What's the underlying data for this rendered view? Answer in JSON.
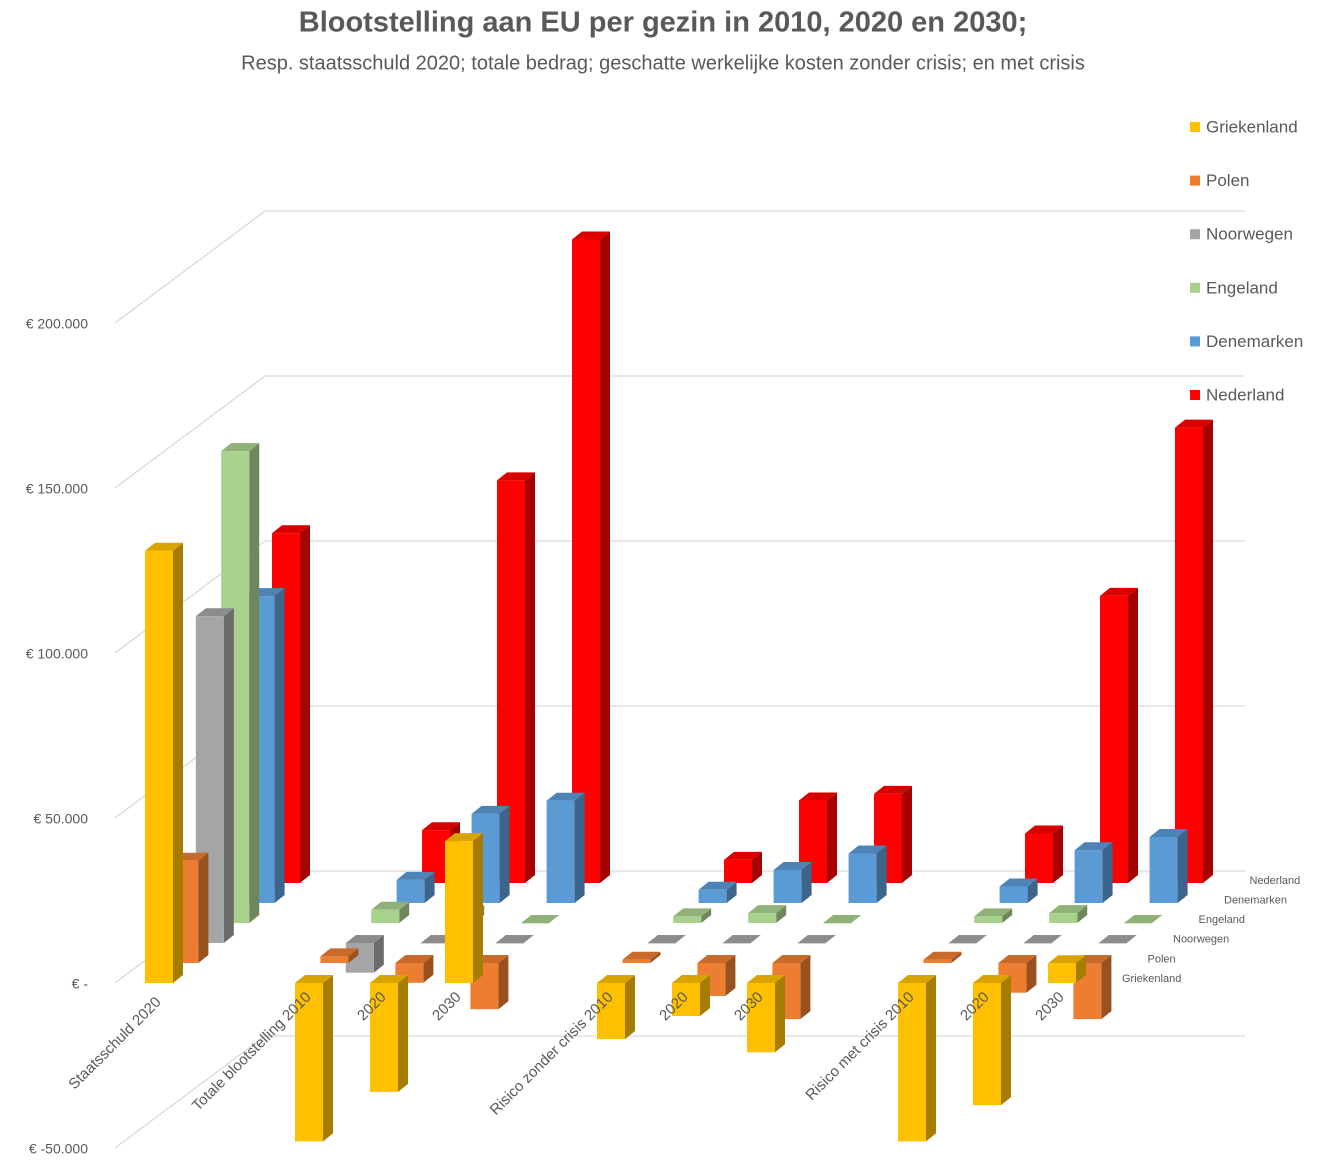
{
  "chart_data": {
    "type": "bar3d",
    "title": "Blootstelling aan EU per gezin in 2010, 2020 en 2030;",
    "subtitle": "Resp. staatsschuld 2020; totale bedrag; geschatte werkelijke kosten zonder crisis; en met crisis",
    "categories": [
      "Staatsschuld 2020",
      "Totale blootstelling 2010",
      "2020",
      "2030",
      "Risico zonder crisis 2010",
      "2020",
      "2030",
      "Risico met crisis 2010",
      "2020",
      "2030"
    ],
    "series": [
      {
        "name": "Griekenland",
        "color": "#FFC000",
        "values": [
          131000,
          -48000,
          -33000,
          43000,
          -17000,
          -10000,
          -21000,
          -48000,
          -37000,
          6000
        ]
      },
      {
        "name": "Polen",
        "color": "#ED7D31",
        "values": [
          31000,
          2000,
          -6000,
          -14000,
          1000,
          -10000,
          -17000,
          1000,
          -9000,
          -17000
        ]
      },
      {
        "name": "Noorwegen",
        "color": "#A5A5A5",
        "values": [
          99000,
          -9000,
          0,
          0,
          0,
          0,
          0,
          0,
          0,
          0
        ]
      },
      {
        "name": "Engeland",
        "color": "#A9D18E",
        "values": [
          143000,
          4000,
          3000,
          0,
          2000,
          3000,
          0,
          2000,
          3000,
          0
        ]
      },
      {
        "name": "Denemarken",
        "color": "#5B9BD5",
        "values": [
          93000,
          7000,
          27000,
          31000,
          4000,
          10000,
          15000,
          5000,
          16000,
          20000
        ]
      },
      {
        "name": "Nederland",
        "color": "#FF0000",
        "values": [
          106000,
          16000,
          122000,
          195000,
          7000,
          25000,
          27000,
          15000,
          87000,
          138000
        ]
      }
    ],
    "ylim": [
      -50000,
      200000
    ],
    "yticks": [
      {
        "value": -50000,
        "label": "€ -50.000"
      },
      {
        "value": 0,
        "label": "€ -"
      },
      {
        "value": 50000,
        "label": "€ 50.000"
      },
      {
        "value": 100000,
        "label": "€ 100.000"
      },
      {
        "value": 150000,
        "label": "€ 150.000"
      },
      {
        "value": 200000,
        "label": "€ 200.000"
      }
    ],
    "grid": true,
    "legend": "right"
  }
}
